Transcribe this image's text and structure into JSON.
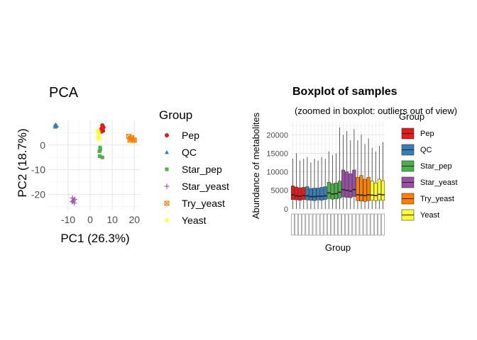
{
  "colors": {
    "Pep": "#E41A1C",
    "QC": "#377EB8",
    "Star_pep": "#4DAF4A",
    "Star_yeast": "#984EA3",
    "Try_yeast": "#FF7F00",
    "Yeast": "#FFFF33"
  },
  "chart_data": [
    {
      "type": "scatter",
      "title": "PCA",
      "xlabel": "PC1 (26.3%)",
      "ylabel": "PC2 (18.7%)",
      "xlim": [
        -19,
        22.5
      ],
      "ylim": [
        -26.5,
        10
      ],
      "xticks": [
        -10,
        0,
        10,
        20
      ],
      "yticks": [
        -20,
        -10,
        0
      ],
      "grid": true,
      "legend": {
        "title": "Group",
        "position": "right"
      },
      "series": [
        {
          "name": "Pep",
          "marker": "circle",
          "points": [
            [
              5.5,
              8
            ],
            [
              5,
              6.5
            ],
            [
              5.2,
              5.5
            ],
            [
              5.8,
              5.8
            ],
            [
              6,
              7.2
            ],
            [
              5.3,
              6.8
            ]
          ]
        },
        {
          "name": "QC",
          "marker": "triangle",
          "points": [
            [
              -16,
              8
            ],
            [
              -15.5,
              7.6
            ],
            [
              -15.7,
              8.3
            ],
            [
              -15.2,
              7.8
            ],
            [
              -15.9,
              7.4
            ],
            [
              -15.4,
              8.1
            ]
          ]
        },
        {
          "name": "Star_pep",
          "marker": "square",
          "points": [
            [
              4.5,
              -1
            ],
            [
              4.2,
              -2.5
            ],
            [
              4.3,
              -4.5
            ],
            [
              5.5,
              -5
            ],
            [
              4.6,
              -1.8
            ]
          ]
        },
        {
          "name": "Star_yeast",
          "marker": "plus",
          "points": [
            [
              -8,
              -21.5
            ],
            [
              -7,
              -22
            ],
            [
              -8.2,
              -23
            ],
            [
              -7.2,
              -23.5
            ],
            [
              -7.6,
              -22.6
            ]
          ]
        },
        {
          "name": "Try_yeast",
          "marker": "boxx",
          "points": [
            [
              17.5,
              3.5
            ],
            [
              18.5,
              2.5
            ],
            [
              19.5,
              2
            ],
            [
              18,
              2
            ],
            [
              20,
              2
            ],
            [
              18.8,
              3
            ]
          ]
        },
        {
          "name": "Yeast",
          "marker": "star",
          "points": [
            [
              3.5,
              3
            ],
            [
              3.8,
              5.2
            ],
            [
              3.5,
              5.8
            ],
            [
              4,
              3.5
            ],
            [
              3.9,
              2.5
            ]
          ]
        }
      ]
    },
    {
      "type": "box",
      "title": "Boxplot of samples",
      "subtitle": "(zoomed in boxplot: outliers out of view)",
      "xlabel": "Group",
      "ylabel": "Abundance of metabolites",
      "ylim": [
        -800,
        23500
      ],
      "yticks": [
        0,
        5000,
        10000,
        15000,
        20000
      ],
      "grid": true,
      "legend": {
        "title": "Group",
        "position": "right"
      },
      "boxes": [
        {
          "group": "Pep",
          "q1": 2500,
          "median": 3800,
          "q3": 6200,
          "lower": 0,
          "upper": 13500
        },
        {
          "group": "Pep",
          "q1": 2400,
          "median": 3500,
          "q3": 5900,
          "lower": 0,
          "upper": 15000
        },
        {
          "group": "Pep",
          "q1": 2300,
          "median": 3400,
          "q3": 5700,
          "lower": 0,
          "upper": 13000
        },
        {
          "group": "Pep",
          "q1": 2500,
          "median": 3600,
          "q3": 5800,
          "lower": 0,
          "upper": 13500
        },
        {
          "group": "QC",
          "q1": 2400,
          "median": 3500,
          "q3": 6000,
          "lower": 0,
          "upper": 14000
        },
        {
          "group": "QC",
          "q1": 2300,
          "median": 3300,
          "q3": 5500,
          "lower": 0,
          "upper": 12500
        },
        {
          "group": "QC",
          "q1": 2200,
          "median": 3300,
          "q3": 5600,
          "lower": 0,
          "upper": 13500
        },
        {
          "group": "QC",
          "q1": 2400,
          "median": 3400,
          "q3": 5600,
          "lower": 0,
          "upper": 13000
        },
        {
          "group": "QC",
          "q1": 2300,
          "median": 3400,
          "q3": 5800,
          "lower": 0,
          "upper": 14000
        },
        {
          "group": "QC",
          "q1": 2500,
          "median": 3500,
          "q3": 6000,
          "lower": 0,
          "upper": 13500
        },
        {
          "group": "Star_pep",
          "q1": 2800,
          "median": 4300,
          "q3": 7200,
          "lower": 0,
          "upper": 15500
        },
        {
          "group": "Star_pep",
          "q1": 2600,
          "median": 4000,
          "q3": 6800,
          "lower": 0,
          "upper": 14500
        },
        {
          "group": "Star_pep",
          "q1": 2700,
          "median": 4100,
          "q3": 7000,
          "lower": 0,
          "upper": 15000
        },
        {
          "group": "Star_pep",
          "q1": 2900,
          "median": 4500,
          "q3": 7500,
          "lower": 0,
          "upper": 22000
        },
        {
          "group": "Star_yeast",
          "q1": 3200,
          "median": 5200,
          "q3": 10500,
          "lower": 0,
          "upper": 20000
        },
        {
          "group": "Star_yeast",
          "q1": 3100,
          "median": 5000,
          "q3": 10000,
          "lower": 0,
          "upper": 21000
        },
        {
          "group": "Star_yeast",
          "q1": 3000,
          "median": 4800,
          "q3": 9500,
          "lower": 0,
          "upper": 18500
        },
        {
          "group": "Star_yeast",
          "q1": 3300,
          "median": 5200,
          "q3": 10500,
          "lower": 0,
          "upper": 21500
        },
        {
          "group": "Try_yeast",
          "q1": 2200,
          "median": 3800,
          "q3": 8500,
          "lower": 0,
          "upper": 18500
        },
        {
          "group": "Try_yeast",
          "q1": 2100,
          "median": 3700,
          "q3": 9000,
          "lower": 0,
          "upper": 20000
        },
        {
          "group": "Try_yeast",
          "q1": 2000,
          "median": 3600,
          "q3": 8000,
          "lower": 0,
          "upper": 17500
        },
        {
          "group": "Try_yeast",
          "q1": 2200,
          "median": 3800,
          "q3": 8500,
          "lower": 0,
          "upper": 19000
        },
        {
          "group": "Yeast",
          "q1": 2300,
          "median": 3700,
          "q3": 7500,
          "lower": 0,
          "upper": 16500
        },
        {
          "group": "Yeast",
          "q1": 2200,
          "median": 3600,
          "q3": 7000,
          "lower": 0,
          "upper": 15500
        },
        {
          "group": "Yeast",
          "q1": 2400,
          "median": 3900,
          "q3": 8000,
          "lower": 0,
          "upper": 17000
        },
        {
          "group": "Yeast",
          "q1": 2300,
          "median": 3800,
          "q3": 7600,
          "lower": 0,
          "upper": 18000
        }
      ]
    }
  ]
}
